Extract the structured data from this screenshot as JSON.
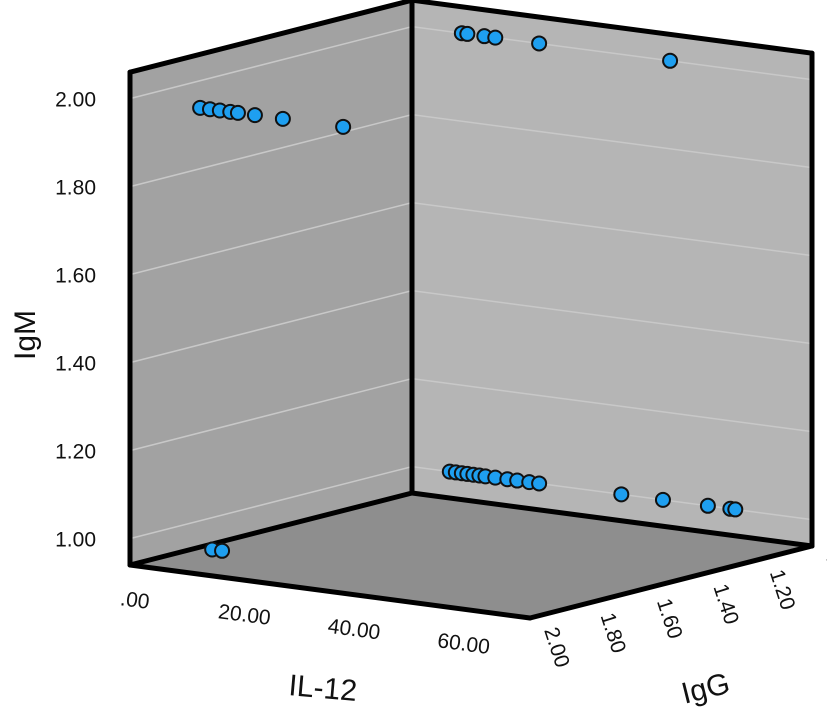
{
  "chart_data": {
    "type": "scatter",
    "dimensions": "3d",
    "title": "",
    "xlabel": "IL-12",
    "ylabel": "IgM",
    "zlabel": "IgG",
    "x_range": [
      0,
      73
    ],
    "y_range": [
      0.94,
      2.06
    ],
    "z_range": [
      2.0,
      1.0
    ],
    "x_ticks": [
      ".00",
      "20.00",
      "40.00",
      "60.00"
    ],
    "x_tick_values": [
      0,
      20,
      40,
      60
    ],
    "y_ticks": [
      "1.00",
      "1.20",
      "1.40",
      "1.60",
      "1.80",
      "2.00"
    ],
    "y_tick_values": [
      1.0,
      1.2,
      1.4,
      1.6,
      1.8,
      2.0
    ],
    "z_ticks": [
      "2.00",
      "1.80",
      "1.60",
      "1.40",
      "1.20",
      "1.00"
    ],
    "z_tick_values": [
      2.0,
      1.8,
      1.6,
      1.4,
      1.2,
      1.0
    ],
    "grid": true,
    "colors": {
      "point": "#1e9ff0",
      "left_wall": "#a2a2a2",
      "right_wall": "#b5b5b5",
      "floor": "#8e8e8e",
      "grid": "#c8c8c8"
    },
    "points": [
      {
        "il12": 12.8,
        "igg": 2.0,
        "igm": 2.0
      },
      {
        "il12": 14.6,
        "igg": 2.0,
        "igm": 2.0
      },
      {
        "il12": 16.4,
        "igg": 2.0,
        "igm": 2.0
      },
      {
        "il12": 18.3,
        "igg": 2.0,
        "igm": 2.0
      },
      {
        "il12": 19.7,
        "igg": 2.0,
        "igm": 2.0
      },
      {
        "il12": 22.8,
        "igg": 2.0,
        "igm": 2.0
      },
      {
        "il12": 27.9,
        "igg": 2.0,
        "igm": 2.0
      },
      {
        "il12": 38.9,
        "igg": 2.0,
        "igm": 2.0
      },
      {
        "il12": 9.1,
        "igg": 1.0,
        "igm": 2.0
      },
      {
        "il12": 10.1,
        "igg": 1.0,
        "igm": 2.0
      },
      {
        "il12": 13.2,
        "igg": 1.0,
        "igm": 2.0
      },
      {
        "il12": 15.2,
        "igg": 1.0,
        "igm": 2.0
      },
      {
        "il12": 23.2,
        "igg": 1.0,
        "igm": 2.0
      },
      {
        "il12": 47.1,
        "igg": 1.0,
        "igm": 2.0
      },
      {
        "il12": 6.9,
        "igg": 1.0,
        "igm": 1.0
      },
      {
        "il12": 8.0,
        "igg": 1.0,
        "igm": 1.0
      },
      {
        "il12": 9.1,
        "igg": 1.0,
        "igm": 1.0
      },
      {
        "il12": 10.1,
        "igg": 1.0,
        "igm": 1.0
      },
      {
        "il12": 11.2,
        "igg": 1.0,
        "igm": 1.0
      },
      {
        "il12": 12.3,
        "igg": 1.0,
        "igm": 1.0
      },
      {
        "il12": 13.4,
        "igg": 1.0,
        "igm": 1.0
      },
      {
        "il12": 15.2,
        "igg": 1.0,
        "igm": 1.0
      },
      {
        "il12": 17.4,
        "igg": 1.0,
        "igm": 1.0
      },
      {
        "il12": 19.2,
        "igg": 1.0,
        "igm": 1.0
      },
      {
        "il12": 21.4,
        "igg": 1.0,
        "igm": 1.0
      },
      {
        "il12": 23.2,
        "igg": 1.0,
        "igm": 1.0
      },
      {
        "il12": 38.2,
        "igg": 1.0,
        "igm": 1.0
      },
      {
        "il12": 45.8,
        "igg": 1.0,
        "igm": 1.0
      },
      {
        "il12": 54.0,
        "igg": 1.0,
        "igm": 1.0
      },
      {
        "il12": 58.1,
        "igg": 1.0,
        "igm": 1.0
      },
      {
        "il12": 59.0,
        "igg": 1.0,
        "igm": 1.0
      },
      {
        "il12": 15.0,
        "igg": 2.0,
        "igm": 1.0
      },
      {
        "il12": 16.8,
        "igg": 2.0,
        "igm": 1.0
      }
    ]
  }
}
